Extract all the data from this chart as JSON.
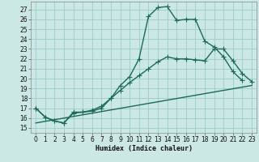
{
  "xlabel": "Humidex (Indice chaleur)",
  "bg_color": "#cce8e4",
  "grid_color": "#99cccc",
  "line_color": "#1a6b5a",
  "xlim": [
    -0.5,
    23.5
  ],
  "ylim": [
    14.5,
    27.8
  ],
  "yticks": [
    15,
    16,
    17,
    18,
    19,
    20,
    21,
    22,
    23,
    24,
    25,
    26,
    27
  ],
  "xticks": [
    0,
    1,
    2,
    3,
    4,
    5,
    6,
    7,
    8,
    9,
    10,
    11,
    12,
    13,
    14,
    15,
    16,
    17,
    18,
    19,
    20,
    21,
    22,
    23
  ],
  "line1_x": [
    0,
    1,
    2,
    3,
    4,
    5,
    6,
    7,
    8,
    9,
    10,
    11,
    12,
    13,
    14,
    15,
    16,
    17,
    18,
    19,
    20,
    21,
    22
  ],
  "line1_y": [
    17.0,
    16.1,
    15.7,
    15.5,
    16.6,
    16.6,
    16.7,
    17.0,
    18.0,
    19.3,
    20.2,
    22.0,
    26.3,
    27.2,
    27.3,
    25.9,
    26.0,
    26.0,
    23.8,
    23.2,
    22.2,
    20.7,
    19.8
  ],
  "line2_x": [
    0,
    1,
    2,
    3,
    4,
    5,
    6,
    7,
    8,
    9,
    10,
    11,
    12,
    13,
    14,
    15,
    16,
    17,
    18,
    19,
    20,
    21,
    22,
    23
  ],
  "line2_y": [
    17.0,
    16.1,
    15.7,
    15.5,
    16.5,
    16.6,
    16.8,
    17.2,
    18.0,
    18.8,
    19.6,
    20.3,
    21.0,
    21.7,
    22.2,
    22.0,
    22.0,
    21.9,
    21.8,
    23.0,
    23.0,
    21.8,
    20.5,
    19.7
  ],
  "line3_x": [
    0,
    23
  ],
  "line3_y": [
    15.5,
    19.3
  ],
  "marker": "+",
  "markersize": 4,
  "linewidth": 1.0
}
